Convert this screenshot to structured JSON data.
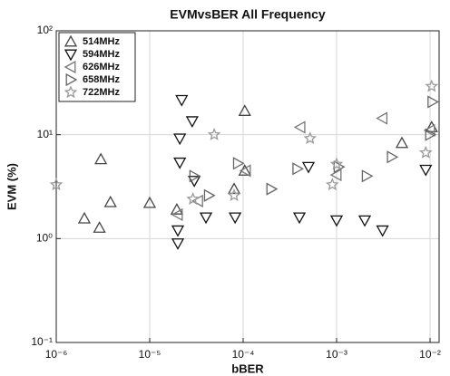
{
  "chart_data": {
    "type": "scatter",
    "title": "EVMvsBER All Frequency",
    "x_label": "bBER",
    "y_label": "EVM (%)",
    "x_scale": "log",
    "y_scale": "log",
    "grid": true,
    "legend_position": "upper-left",
    "xlim": [
      1e-06,
      0.0125
    ],
    "ylim": [
      0.1,
      100
    ],
    "xticks": [
      {
        "value": 1e-06,
        "label": "10⁻⁶"
      },
      {
        "value": 1e-05,
        "label": "10⁻⁵"
      },
      {
        "value": 0.0001,
        "label": "10⁻⁴"
      },
      {
        "value": 0.001,
        "label": "10⁻³"
      },
      {
        "value": 0.01,
        "label": "10⁻²"
      }
    ],
    "yticks": [
      {
        "value": 0.1,
        "label": "10⁻¹"
      },
      {
        "value": 1,
        "label": "10⁰"
      },
      {
        "value": 10,
        "label": "10¹"
      },
      {
        "value": 100,
        "label": "10²"
      }
    ],
    "series": [
      {
        "name": "514MHz",
        "marker": "triangle-up",
        "color": "#444444",
        "x": [
          3e-06,
          3.8e-06,
          2e-06,
          2.9e-06,
          1e-05,
          0.000104,
          8e-05,
          0.000104,
          0.005,
          0.0104,
          1.95e-05
        ],
        "y": [
          5.8,
          2.24,
          1.56,
          1.27,
          2.2,
          16.9,
          3.0,
          4.5,
          8.3,
          11.8,
          1.9
        ]
      },
      {
        "name": "594MHz",
        "marker": "triangle-down",
        "color": "#111111",
        "x": [
          2.2e-05,
          2.85e-05,
          2.1e-05,
          2.1e-05,
          3e-05,
          4e-05,
          8.2e-05,
          0.0004,
          0.0005,
          0.001,
          0.002,
          0.0031,
          0.009,
          2e-05,
          2e-05
        ],
        "y": [
          21.6,
          13.5,
          9.2,
          5.4,
          3.6,
          1.6,
          1.6,
          1.6,
          4.9,
          1.5,
          1.5,
          1.2,
          4.6,
          0.9,
          1.2
        ]
      },
      {
        "name": "626MHz",
        "marker": "triangle-left",
        "color": "#777777",
        "x": [
          0.00041,
          0.0031,
          0.01,
          0.001,
          0.000107,
          3.3e-05,
          2e-05
        ],
        "y": [
          11.8,
          14.4,
          11,
          4.1,
          4.5,
          2.3,
          1.7
        ]
      },
      {
        "name": "658MHz",
        "marker": "triangle-right",
        "color": "#666666",
        "x": [
          0.0106,
          0.01,
          0.00038,
          0.00105,
          0.0021,
          0.0039,
          0.0002,
          8.8e-05,
          3e-05,
          4.3e-05
        ],
        "y": [
          20.7,
          10,
          4.7,
          4.9,
          4.0,
          6.1,
          3.0,
          5.3,
          4.0,
          2.6
        ]
      },
      {
        "name": "722MHz",
        "marker": "star",
        "color": "#999999",
        "x": [
          0.0104,
          1e-06,
          4.9e-05,
          0.00052,
          8e-05,
          0.001,
          0.0009,
          0.009,
          2.9e-05
        ],
        "y": [
          29.2,
          3.3,
          10,
          9.2,
          2.6,
          5.2,
          3.3,
          6.7,
          2.4
        ]
      }
    ]
  }
}
